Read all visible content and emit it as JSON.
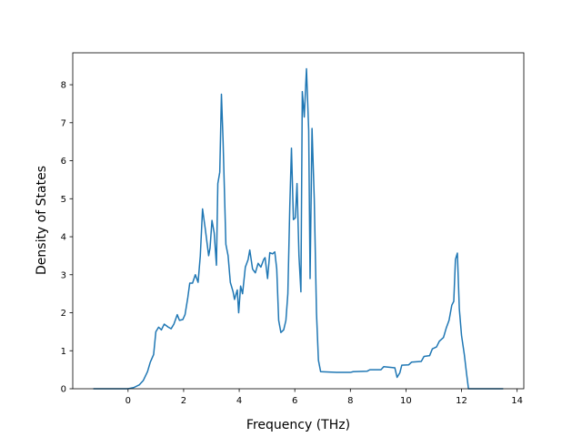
{
  "chart_data": {
    "type": "line",
    "xlabel": "Frequency (THz)",
    "ylabel": "Density of States",
    "xlim": [
      -1.99,
      14.24
    ],
    "ylim": [
      0,
      8.84
    ],
    "xticks": [
      0,
      2,
      4,
      6,
      8,
      10,
      12,
      14
    ],
    "yticks": [
      0,
      1,
      2,
      3,
      4,
      5,
      6,
      7,
      8
    ],
    "grid": false,
    "series": [
      {
        "color": "#1f77b4",
        "x": [
          -1.25,
          -0.5,
          0,
          0.2,
          0.4,
          0.55,
          0.7,
          0.8,
          0.92,
          1.0,
          1.1,
          1.2,
          1.3,
          1.45,
          1.55,
          1.65,
          1.77,
          1.85,
          1.97,
          2.05,
          2.15,
          2.22,
          2.32,
          2.42,
          2.52,
          2.6,
          2.68,
          2.78,
          2.9,
          2.95,
          3.02,
          3.1,
          3.18,
          3.23,
          3.3,
          3.36,
          3.42,
          3.52,
          3.6,
          3.68,
          3.78,
          3.83,
          3.93,
          3.98,
          4.05,
          4.12,
          4.22,
          4.32,
          4.38,
          4.48,
          4.58,
          4.68,
          4.78,
          4.88,
          4.93,
          5.02,
          5.1,
          5.2,
          5.28,
          5.35,
          5.42,
          5.5,
          5.6,
          5.68,
          5.75,
          5.82,
          5.88,
          5.95,
          6.02,
          6.08,
          6.15,
          6.22,
          6.27,
          6.34,
          6.42,
          6.5,
          6.55,
          6.62,
          6.7,
          6.78,
          6.85,
          6.93,
          7.5,
          8.0,
          8.1,
          8.6,
          8.7,
          9.1,
          9.2,
          9.6,
          9.68,
          9.78,
          9.85,
          10.1,
          10.2,
          10.55,
          10.65,
          10.85,
          10.95,
          11.1,
          11.2,
          11.35,
          11.45,
          11.55,
          11.65,
          11.72,
          11.78,
          11.85,
          11.92,
          12.0,
          12.1,
          12.18,
          12.25,
          13.5
        ],
        "values": [
          0,
          0,
          0,
          0.03,
          0.1,
          0.22,
          0.45,
          0.7,
          0.9,
          1.5,
          1.62,
          1.55,
          1.7,
          1.62,
          1.58,
          1.7,
          1.95,
          1.8,
          1.82,
          1.95,
          2.4,
          2.78,
          2.78,
          3.0,
          2.8,
          3.5,
          4.73,
          4.2,
          3.5,
          3.7,
          4.43,
          4.1,
          3.25,
          5.4,
          5.7,
          7.75,
          6.5,
          3.8,
          3.5,
          2.8,
          2.55,
          2.35,
          2.6,
          2.0,
          2.7,
          2.5,
          3.2,
          3.4,
          3.65,
          3.15,
          3.05,
          3.3,
          3.2,
          3.4,
          3.45,
          2.9,
          3.58,
          3.55,
          3.6,
          3.15,
          1.8,
          1.48,
          1.55,
          1.8,
          2.5,
          4.8,
          6.33,
          4.45,
          4.5,
          5.4,
          3.5,
          2.55,
          7.82,
          7.15,
          8.42,
          6.8,
          2.9,
          6.85,
          5.0,
          2.0,
          0.75,
          0.45,
          0.43,
          0.43,
          0.45,
          0.46,
          0.5,
          0.5,
          0.58,
          0.55,
          0.3,
          0.42,
          0.62,
          0.63,
          0.7,
          0.72,
          0.85,
          0.87,
          1.05,
          1.1,
          1.25,
          1.35,
          1.6,
          1.8,
          2.2,
          2.3,
          3.4,
          3.57,
          2.1,
          1.4,
          0.9,
          0.4,
          0,
          0
        ]
      }
    ]
  }
}
